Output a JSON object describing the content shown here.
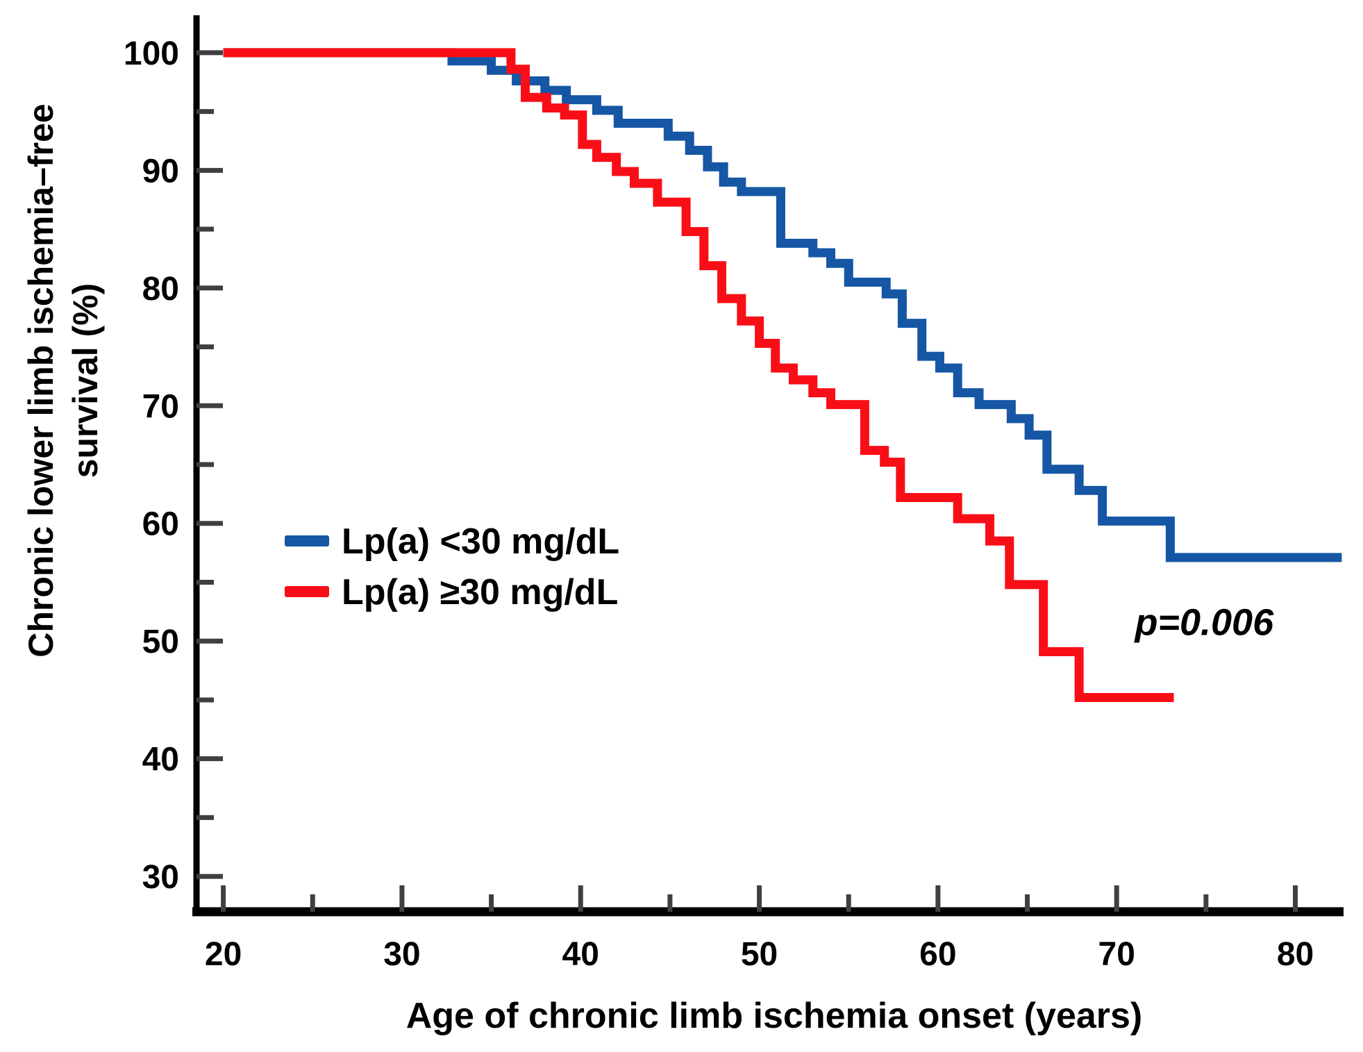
{
  "chart_data": {
    "type": "line",
    "variant": "kaplan_meier_step",
    "title": "",
    "xlabel": "Age of chronic limb ischemia onset (years)",
    "ylabel": "Chronic lower limb ischemia–free survival (%)",
    "ylabel_lines": [
      "Chronic lower limb ischemia–free",
      "survival (%)"
    ],
    "xlim": [
      18.5,
      82.7
    ],
    "ylim": [
      27,
      103
    ],
    "x_major_ticks": [
      20,
      30,
      40,
      50,
      60,
      70,
      80
    ],
    "x_minor_ticks": [
      25,
      35,
      45,
      55,
      65,
      75
    ],
    "y_major_ticks": [
      30,
      40,
      50,
      60,
      70,
      80,
      90,
      100
    ],
    "y_minor_ticks": [
      35,
      45,
      55,
      65,
      75,
      85,
      95
    ],
    "grid": false,
    "legend_position": "inside-left-middle",
    "annotation": {
      "text": "p=0.006",
      "x": 74.9,
      "y": 50.5
    },
    "series": [
      {
        "name": "Lp(a) <30 mg/dL",
        "color": "#1556A5",
        "points": [
          [
            20,
            100
          ],
          [
            32.8,
            99.3
          ],
          [
            35.0,
            98.5
          ],
          [
            36.4,
            97.6
          ],
          [
            38.0,
            96.8
          ],
          [
            39.2,
            96.0
          ],
          [
            40.9,
            95.1
          ],
          [
            42.1,
            94.0
          ],
          [
            44.9,
            92.9
          ],
          [
            46.1,
            91.7
          ],
          [
            47.1,
            90.3
          ],
          [
            48.0,
            89.0
          ],
          [
            49.0,
            88.2
          ],
          [
            51.2,
            83.8
          ],
          [
            53.0,
            83.0
          ],
          [
            54.0,
            82.1
          ],
          [
            55.0,
            80.5
          ],
          [
            57.1,
            79.5
          ],
          [
            58.0,
            77.0
          ],
          [
            59.1,
            74.2
          ],
          [
            60.1,
            73.2
          ],
          [
            61.1,
            71.1
          ],
          [
            62.3,
            70.1
          ],
          [
            64.1,
            68.9
          ],
          [
            65.1,
            67.5
          ],
          [
            66.1,
            64.6
          ],
          [
            67.9,
            62.8
          ],
          [
            69.2,
            60.2
          ],
          [
            73.0,
            57.1
          ],
          [
            82.6,
            57.1
          ]
        ]
      },
      {
        "name": "Lp(a) ≥30 mg/dL",
        "color": "#F90E17",
        "points": [
          [
            20,
            100
          ],
          [
            36.1,
            98.6
          ],
          [
            36.9,
            96.2
          ],
          [
            38.1,
            95.3
          ],
          [
            39.1,
            94.7
          ],
          [
            40.1,
            92.2
          ],
          [
            40.9,
            91.1
          ],
          [
            42.0,
            89.9
          ],
          [
            43.0,
            88.9
          ],
          [
            44.3,
            87.3
          ],
          [
            45.9,
            84.8
          ],
          [
            46.9,
            81.9
          ],
          [
            47.9,
            79.1
          ],
          [
            49.0,
            77.2
          ],
          [
            50.0,
            75.3
          ],
          [
            50.9,
            73.2
          ],
          [
            51.9,
            72.2
          ],
          [
            53.0,
            71.1
          ],
          [
            54.0,
            70.1
          ],
          [
            55.9,
            66.2
          ],
          [
            57.0,
            65.2
          ],
          [
            57.9,
            62.2
          ],
          [
            61.1,
            60.4
          ],
          [
            62.9,
            58.5
          ],
          [
            64.0,
            54.8
          ],
          [
            65.9,
            49.1
          ],
          [
            67.9,
            45.2
          ],
          [
            73.2,
            45.2
          ]
        ]
      }
    ]
  }
}
